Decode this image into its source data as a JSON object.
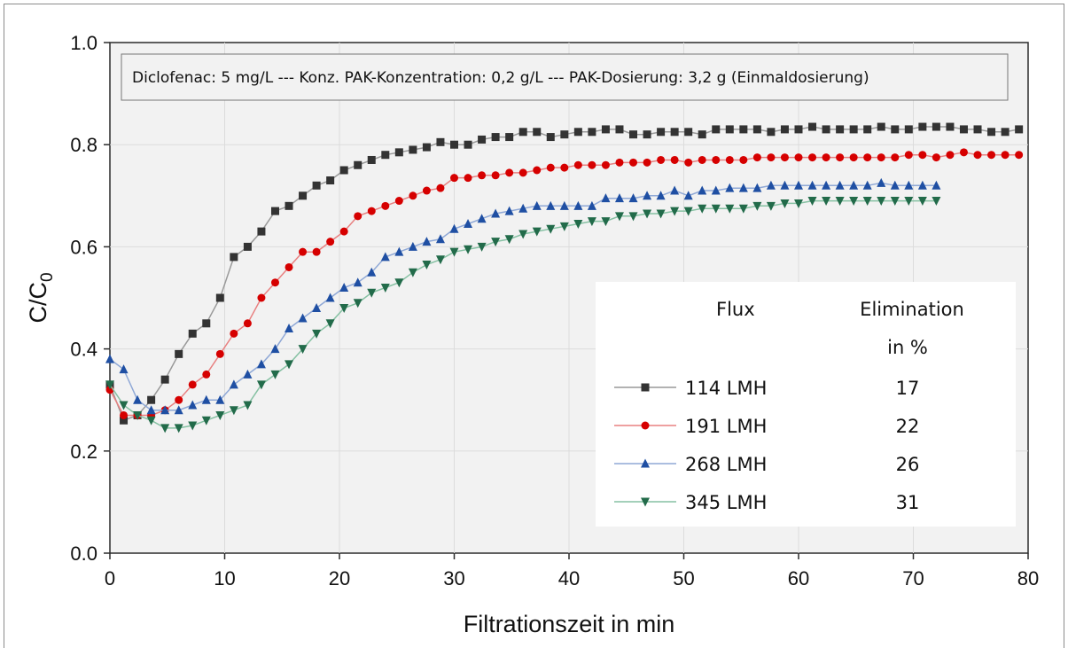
{
  "chart_data": {
    "type": "line",
    "title": "",
    "annotation": "Diclofenac: 5 mg/L --- Konz. PAK-Konzentration: 0,2 g/L --- PAK-Dosierung: 3,2 g (Einmaldosierung)",
    "xlabel": "Filtrationszeit in min",
    "ylabel_main": "C/C",
    "ylabel_sub": "0",
    "xlim": [
      0,
      80
    ],
    "ylim": [
      0.0,
      1.0
    ],
    "xticks": [
      0,
      10,
      20,
      30,
      40,
      50,
      60,
      70,
      80
    ],
    "yticks": [
      "0.0",
      "0.2",
      "0.4",
      "0.6",
      "0.8",
      "1.0"
    ],
    "grid": true,
    "legend_position": "bottom-right",
    "legend_headers": {
      "flux": "Flux",
      "elimination_1": "Elimination",
      "elimination_2": "in %"
    },
    "series": [
      {
        "name": "114 LMH",
        "elimination": "17",
        "color": "#333333",
        "marker": "square",
        "line_color": "#999999",
        "x": [
          0,
          1.2,
          2.4,
          3.6,
          4.8,
          6,
          7.2,
          8.4,
          9.6,
          10.8,
          12,
          13.2,
          14.4,
          15.6,
          16.8,
          18,
          19.2,
          20.4,
          21.6,
          22.8,
          24,
          25.2,
          26.4,
          27.6,
          28.8,
          30,
          31.2,
          32.4,
          33.6,
          34.8,
          36,
          37.2,
          38.4,
          39.6,
          40.8,
          42,
          43.2,
          44.4,
          45.6,
          46.8,
          48,
          49.2,
          50.4,
          51.6,
          52.8,
          54,
          55.2,
          56.4,
          57.6,
          58.8,
          60,
          61.2,
          62.4,
          63.6,
          64.8,
          66,
          67.2,
          68.4,
          69.6,
          70.8,
          72,
          73.2,
          74.4,
          75.6,
          76.8,
          78,
          79.2
        ],
        "y": [
          0.33,
          0.26,
          0.27,
          0.3,
          0.34,
          0.39,
          0.43,
          0.45,
          0.5,
          0.58,
          0.6,
          0.63,
          0.67,
          0.68,
          0.7,
          0.72,
          0.73,
          0.75,
          0.76,
          0.77,
          0.78,
          0.785,
          0.79,
          0.795,
          0.805,
          0.8,
          0.8,
          0.81,
          0.815,
          0.815,
          0.825,
          0.825,
          0.815,
          0.82,
          0.825,
          0.825,
          0.83,
          0.83,
          0.82,
          0.82,
          0.825,
          0.825,
          0.825,
          0.82,
          0.83,
          0.83,
          0.83,
          0.83,
          0.825,
          0.83,
          0.83,
          0.835,
          0.83,
          0.83,
          0.83,
          0.83,
          0.835,
          0.83,
          0.83,
          0.835,
          0.835,
          0.835,
          0.83,
          0.83,
          0.825,
          0.825,
          0.83
        ]
      },
      {
        "name": "191 LMH",
        "elimination": "22",
        "color": "#d60000",
        "marker": "circle",
        "line_color": "#e88080",
        "x": [
          0,
          1.2,
          2.4,
          3.6,
          4.8,
          6,
          7.2,
          8.4,
          9.6,
          10.8,
          12,
          13.2,
          14.4,
          15.6,
          16.8,
          18,
          19.2,
          20.4,
          21.6,
          22.8,
          24,
          25.2,
          26.4,
          27.6,
          28.8,
          30,
          31.2,
          32.4,
          33.6,
          34.8,
          36,
          37.2,
          38.4,
          39.6,
          40.8,
          42,
          43.2,
          44.4,
          45.6,
          46.8,
          48,
          49.2,
          50.4,
          51.6,
          52.8,
          54,
          55.2,
          56.4,
          57.6,
          58.8,
          60,
          61.2,
          62.4,
          63.6,
          64.8,
          66,
          67.2,
          68.4,
          69.6,
          70.8,
          72,
          73.2,
          74.4,
          75.6,
          76.8,
          78,
          79.2
        ],
        "y": [
          0.32,
          0.27,
          0.27,
          0.27,
          0.28,
          0.3,
          0.33,
          0.35,
          0.39,
          0.43,
          0.45,
          0.5,
          0.53,
          0.56,
          0.59,
          0.59,
          0.61,
          0.63,
          0.66,
          0.67,
          0.68,
          0.69,
          0.7,
          0.71,
          0.715,
          0.735,
          0.735,
          0.74,
          0.74,
          0.745,
          0.745,
          0.75,
          0.755,
          0.755,
          0.76,
          0.76,
          0.76,
          0.765,
          0.765,
          0.765,
          0.77,
          0.77,
          0.765,
          0.77,
          0.77,
          0.77,
          0.77,
          0.775,
          0.775,
          0.775,
          0.775,
          0.775,
          0.775,
          0.775,
          0.775,
          0.775,
          0.775,
          0.775,
          0.78,
          0.78,
          0.775,
          0.78,
          0.785,
          0.78,
          0.78,
          0.78,
          0.78
        ]
      },
      {
        "name": "268 LMH",
        "elimination": "26",
        "color": "#1f4fa3",
        "marker": "triangle-up",
        "line_color": "#8fa8d6",
        "x": [
          0,
          1.2,
          2.4,
          3.6,
          4.8,
          6,
          7.2,
          8.4,
          9.6,
          10.8,
          12,
          13.2,
          14.4,
          15.6,
          16.8,
          18,
          19.2,
          20.4,
          21.6,
          22.8,
          24,
          25.2,
          26.4,
          27.6,
          28.8,
          30,
          31.2,
          32.4,
          33.6,
          34.8,
          36,
          37.2,
          38.4,
          39.6,
          40.8,
          42,
          43.2,
          44.4,
          45.6,
          46.8,
          48,
          49.2,
          50.4,
          51.6,
          52.8,
          54,
          55.2,
          56.4,
          57.6,
          58.8,
          60,
          61.2,
          62.4,
          63.6,
          64.8,
          66,
          67.2,
          68.4,
          69.6,
          70.8,
          72
        ],
        "y": [
          0.38,
          0.36,
          0.3,
          0.28,
          0.28,
          0.28,
          0.29,
          0.3,
          0.3,
          0.33,
          0.35,
          0.37,
          0.4,
          0.44,
          0.46,
          0.48,
          0.5,
          0.52,
          0.53,
          0.55,
          0.58,
          0.59,
          0.6,
          0.61,
          0.615,
          0.635,
          0.645,
          0.655,
          0.665,
          0.67,
          0.675,
          0.68,
          0.68,
          0.68,
          0.68,
          0.68,
          0.695,
          0.695,
          0.695,
          0.7,
          0.7,
          0.71,
          0.7,
          0.71,
          0.71,
          0.715,
          0.715,
          0.715,
          0.72,
          0.72,
          0.72,
          0.72,
          0.72,
          0.72,
          0.72,
          0.72,
          0.725,
          0.72,
          0.72,
          0.72,
          0.72
        ]
      },
      {
        "name": "345 LMH",
        "elimination": "31",
        "color": "#226b4a",
        "marker": "triangle-down",
        "line_color": "#86c1a3",
        "x": [
          0,
          1.2,
          2.4,
          3.6,
          4.8,
          6,
          7.2,
          8.4,
          9.6,
          10.8,
          12,
          13.2,
          14.4,
          15.6,
          16.8,
          18,
          19.2,
          20.4,
          21.6,
          22.8,
          24,
          25.2,
          26.4,
          27.6,
          28.8,
          30,
          31.2,
          32.4,
          33.6,
          34.8,
          36,
          37.2,
          38.4,
          39.6,
          40.8,
          42,
          43.2,
          44.4,
          45.6,
          46.8,
          48,
          49.2,
          50.4,
          51.6,
          52.8,
          54,
          55.2,
          56.4,
          57.6,
          58.8,
          60,
          61.2,
          62.4,
          63.6,
          64.8,
          66,
          67.2,
          68.4,
          69.6,
          70.8,
          72
        ],
        "y": [
          0.33,
          0.29,
          0.27,
          0.26,
          0.245,
          0.245,
          0.25,
          0.26,
          0.27,
          0.28,
          0.29,
          0.33,
          0.35,
          0.37,
          0.4,
          0.43,
          0.45,
          0.48,
          0.49,
          0.51,
          0.52,
          0.53,
          0.55,
          0.565,
          0.575,
          0.59,
          0.595,
          0.6,
          0.61,
          0.615,
          0.625,
          0.63,
          0.635,
          0.64,
          0.645,
          0.65,
          0.65,
          0.66,
          0.66,
          0.665,
          0.665,
          0.67,
          0.67,
          0.675,
          0.675,
          0.675,
          0.675,
          0.68,
          0.68,
          0.685,
          0.685,
          0.69,
          0.69,
          0.69,
          0.69,
          0.69,
          0.69,
          0.69,
          0.69,
          0.69,
          0.69
        ]
      }
    ]
  }
}
